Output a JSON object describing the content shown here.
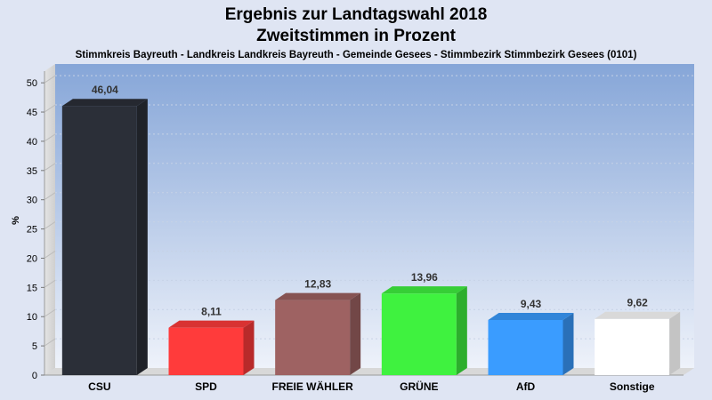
{
  "chart_data": {
    "type": "bar",
    "title": "Ergebnis zur Landtagswahl 2018",
    "title_line2": "Zweitstimmen in Prozent",
    "subtitle": "Stimmkreis Bayreuth - Landkreis Landkreis Bayreuth - Gemeinde Gesees - Stimmbezirk Stimmbezirk Gesees (0101)",
    "ylabel": "%",
    "xlabel": "",
    "ylim": [
      0,
      52
    ],
    "yticks": [
      0,
      5,
      10,
      15,
      20,
      25,
      30,
      35,
      40,
      45,
      50
    ],
    "grid": true,
    "categories": [
      "CSU",
      "SPD",
      "FREIE WÄHLER",
      "GRÜNE",
      "AfD",
      "Sonstige"
    ],
    "values": [
      46.04,
      8.11,
      12.83,
      13.96,
      9.43,
      9.62
    ],
    "value_labels": [
      "46,04",
      "8,11",
      "12,83",
      "13,96",
      "9,43",
      "9,62"
    ],
    "colors": [
      "#2b2f38",
      "#ff3b3b",
      "#9e6262",
      "#3ff23f",
      "#3a9cff",
      "#ffffff"
    ]
  }
}
